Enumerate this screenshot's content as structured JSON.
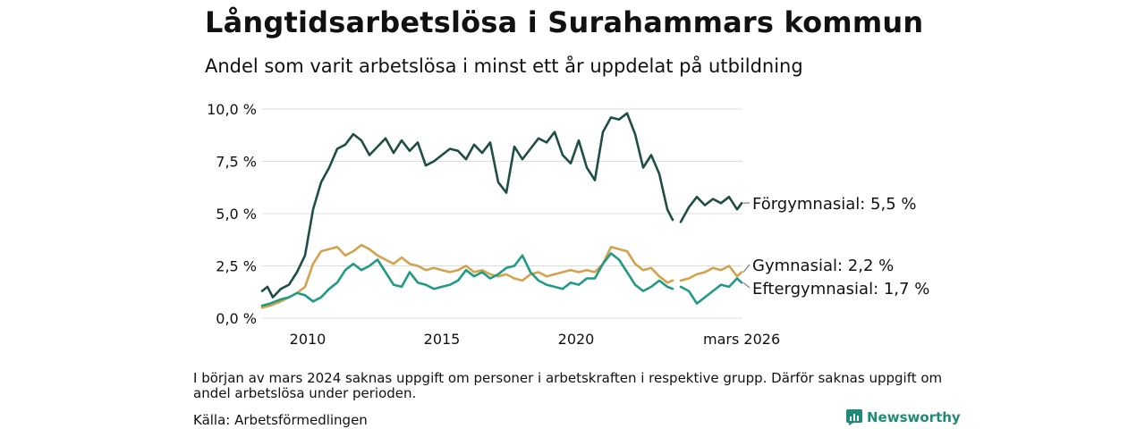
{
  "title": "Långtidsarbetslösa i Surahammars kommun",
  "subtitle": "Andel som varit arbetslösa i minst ett år uppdelat på utbildning",
  "note": "I början av mars 2024 saknas uppgift om personer i arbetskraften i respektive grupp. Därför saknas uppgift om andel arbetslösa under perioden.",
  "source": "Källa: Arbetsförmedlingen",
  "brand": "Newsworthy",
  "colors": {
    "forgymnasial": "#1f4e45",
    "gymnasial": "#d4a24c",
    "eftergymnasial": "#1f9b84",
    "grid": "#dddddd",
    "brand": "#1f8a78"
  },
  "chart_data": {
    "type": "line",
    "title": "Långtidsarbetslösa i Surahammars kommun",
    "xlabel": "",
    "ylabel": "",
    "xlim": [
      2008.3,
      2026.2
    ],
    "ylim": [
      0,
      10
    ],
    "y_ticks": [
      0,
      2.5,
      5,
      7.5,
      10
    ],
    "y_tick_labels": [
      "0,0 %",
      "2,5 %",
      "5,0 %",
      "7,5 %",
      "10,0 %"
    ],
    "x_ticks": [
      2010,
      2015,
      2020,
      2026.17
    ],
    "x_tick_labels": [
      "2010",
      "2015",
      "2020",
      "mars 2026"
    ],
    "gap": [
      2023.6,
      2023.9
    ],
    "series": [
      {
        "name": "Förgymnasial",
        "end_label": "Förgymnasial: 5,5 %",
        "x": [
          2008.3,
          2008.5,
          2008.7,
          2009.0,
          2009.3,
          2009.6,
          2009.9,
          2010.2,
          2010.5,
          2010.8,
          2011.1,
          2011.4,
          2011.7,
          2012.0,
          2012.3,
          2012.6,
          2012.9,
          2013.2,
          2013.5,
          2013.8,
          2014.1,
          2014.4,
          2014.7,
          2015.0,
          2015.3,
          2015.6,
          2015.9,
          2016.2,
          2016.5,
          2016.8,
          2017.1,
          2017.4,
          2017.7,
          2018.0,
          2018.3,
          2018.6,
          2018.9,
          2019.2,
          2019.5,
          2019.8,
          2020.1,
          2020.4,
          2020.7,
          2021.0,
          2021.3,
          2021.6,
          2021.9,
          2022.2,
          2022.5,
          2022.8,
          2023.1,
          2023.4,
          2023.6,
          2023.9,
          2024.2,
          2024.5,
          2024.8,
          2025.1,
          2025.4,
          2025.7,
          2026.0,
          2026.17
        ],
        "values": [
          1.3,
          1.5,
          1.0,
          1.4,
          1.6,
          2.2,
          3.0,
          5.2,
          6.5,
          7.2,
          8.1,
          8.3,
          8.8,
          8.5,
          7.8,
          8.2,
          8.6,
          7.9,
          8.5,
          8.0,
          8.4,
          7.3,
          7.5,
          7.8,
          8.1,
          8.0,
          7.6,
          8.3,
          7.9,
          8.4,
          6.5,
          6.0,
          8.2,
          7.6,
          8.1,
          8.6,
          8.4,
          8.9,
          7.8,
          7.4,
          8.5,
          7.2,
          6.6,
          8.9,
          9.6,
          9.5,
          9.8,
          8.8,
          7.2,
          7.8,
          6.9,
          5.2,
          4.7,
          4.6,
          5.3,
          5.8,
          5.4,
          5.7,
          5.5,
          5.8,
          5.2,
          5.5
        ]
      },
      {
        "name": "Gymnasial",
        "end_label": "Gymnasial: 2,2 %",
        "x": [
          2008.3,
          2008.6,
          2009.0,
          2009.3,
          2009.6,
          2009.9,
          2010.2,
          2010.5,
          2010.8,
          2011.1,
          2011.4,
          2011.7,
          2012.0,
          2012.3,
          2012.6,
          2012.9,
          2013.2,
          2013.5,
          2013.8,
          2014.1,
          2014.4,
          2014.7,
          2015.0,
          2015.3,
          2015.6,
          2015.9,
          2016.2,
          2016.5,
          2016.8,
          2017.1,
          2017.4,
          2017.7,
          2018.0,
          2018.3,
          2018.6,
          2018.9,
          2019.2,
          2019.5,
          2019.8,
          2020.1,
          2020.4,
          2020.7,
          2021.0,
          2021.3,
          2021.6,
          2021.9,
          2022.2,
          2022.5,
          2022.8,
          2023.1,
          2023.4,
          2023.6,
          2023.9,
          2024.2,
          2024.5,
          2024.8,
          2025.1,
          2025.4,
          2025.7,
          2026.0,
          2026.17
        ],
        "values": [
          0.5,
          0.6,
          0.8,
          1.0,
          1.2,
          1.5,
          2.6,
          3.2,
          3.3,
          3.4,
          3.0,
          3.2,
          3.5,
          3.3,
          3.0,
          2.8,
          2.6,
          2.9,
          2.6,
          2.5,
          2.3,
          2.4,
          2.3,
          2.2,
          2.3,
          2.5,
          2.2,
          2.3,
          2.1,
          2.0,
          2.1,
          1.9,
          1.8,
          2.1,
          2.2,
          2.0,
          2.1,
          2.2,
          2.3,
          2.2,
          2.3,
          2.2,
          2.6,
          3.4,
          3.3,
          3.2,
          2.6,
          2.3,
          2.4,
          2.0,
          1.7,
          1.8,
          1.8,
          1.9,
          2.1,
          2.2,
          2.4,
          2.3,
          2.5,
          2.0,
          2.2
        ]
      },
      {
        "name": "Eftergymnasial",
        "end_label": "Eftergymnasial: 1,7 %",
        "x": [
          2008.3,
          2008.6,
          2009.0,
          2009.3,
          2009.6,
          2009.9,
          2010.2,
          2010.5,
          2010.8,
          2011.1,
          2011.4,
          2011.7,
          2012.0,
          2012.3,
          2012.6,
          2012.9,
          2013.2,
          2013.5,
          2013.8,
          2014.1,
          2014.4,
          2014.7,
          2015.0,
          2015.3,
          2015.6,
          2015.9,
          2016.2,
          2016.5,
          2016.8,
          2017.1,
          2017.4,
          2017.7,
          2018.0,
          2018.3,
          2018.6,
          2018.9,
          2019.2,
          2019.5,
          2019.8,
          2020.1,
          2020.4,
          2020.7,
          2021.0,
          2021.3,
          2021.6,
          2021.9,
          2022.2,
          2022.5,
          2022.8,
          2023.1,
          2023.4,
          2023.6,
          2023.9,
          2024.2,
          2024.5,
          2024.8,
          2025.1,
          2025.4,
          2025.7,
          2026.0,
          2026.17
        ],
        "values": [
          0.6,
          0.7,
          0.9,
          1.0,
          1.2,
          1.1,
          0.8,
          1.0,
          1.4,
          1.7,
          2.3,
          2.6,
          2.3,
          2.5,
          2.8,
          2.2,
          1.6,
          1.5,
          2.2,
          1.7,
          1.6,
          1.4,
          1.5,
          1.6,
          1.8,
          2.3,
          2.0,
          2.2,
          1.9,
          2.1,
          2.4,
          2.5,
          3.0,
          2.2,
          1.8,
          1.6,
          1.5,
          1.4,
          1.7,
          1.6,
          1.9,
          1.9,
          2.6,
          3.1,
          2.8,
          2.2,
          1.6,
          1.3,
          1.5,
          1.8,
          1.5,
          1.4,
          1.5,
          1.3,
          0.7,
          1.0,
          1.3,
          1.6,
          1.5,
          1.9,
          1.7
        ]
      }
    ]
  }
}
